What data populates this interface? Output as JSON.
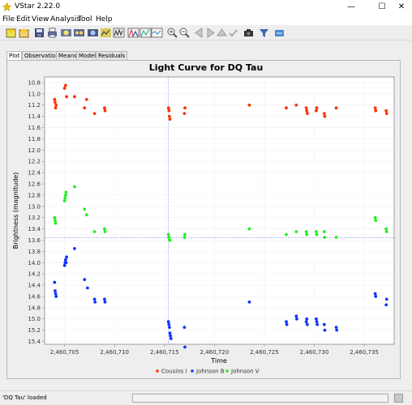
{
  "window": {
    "title": "VStar 2.22.0",
    "minimize": "—",
    "maximize": "☐",
    "close": "✕"
  },
  "menu": [
    "File",
    "Edit",
    "View",
    "Analysis",
    "Tool",
    "Help"
  ],
  "toolbar_icons": [
    "new-star-icon",
    "open-file-icon",
    "save-icon",
    "print-icon",
    "info-icon",
    "plot-settings-icon",
    "zoom-icon",
    "filter-icon",
    "phase-plot-icon",
    "period-search-icon",
    "model-icon",
    "zoom-in-icon",
    "zoom-out-icon",
    "pan-left-icon",
    "pan-right-icon",
    "pan-up-icon",
    "pan-down-icon",
    "check-icon",
    "camera-icon",
    "filter-funnel-icon",
    "plugin-icon"
  ],
  "tabs": [
    "Plot",
    "Observations",
    "Means",
    "Model",
    "Residuals"
  ],
  "active_tab": "Plot",
  "status": {
    "message": "'DQ Tau' loaded"
  },
  "chart_data": {
    "type": "scatter",
    "title": "Light Curve for DQ Tau",
    "xlabel": "Time",
    "ylabel": "Brightness (magnitude)",
    "xlim": [
      2460703,
      2460738
    ],
    "ylim": [
      10.7,
      15.45
    ],
    "y_inverted": true,
    "xticks": [
      2460705,
      2460710,
      2460715,
      2460720,
      2460725,
      2460730,
      2460735
    ],
    "xtick_labels": [
      "2,460,705",
      "2,460,710",
      "2,460,715",
      "2,460,720",
      "2,460,725",
      "2,460,730",
      "2,460,735"
    ],
    "yticks": [
      10.8,
      11.0,
      11.2,
      11.4,
      11.6,
      11.8,
      12.0,
      12.2,
      12.4,
      12.6,
      12.8,
      13.0,
      13.2,
      13.4,
      13.6,
      13.8,
      14.0,
      14.2,
      14.4,
      14.6,
      14.8,
      15.0,
      15.2,
      15.4
    ],
    "ytick_labels": [
      "10.8",
      "11.0",
      "11.2",
      "11.4",
      "11.6",
      "11.8",
      "12.0",
      "12.2",
      "12.4",
      "12.6",
      "12.8",
      "13.0",
      "13.2",
      "13.4",
      "13.6",
      "13.8",
      "14.0",
      "14.2",
      "14.4",
      "14.6",
      "14.8",
      "15.0",
      "15.2",
      "15.4"
    ],
    "crosshair": {
      "x": 2460715.4,
      "y": 13.56
    },
    "grid": true,
    "legend_position": "bottom",
    "series": [
      {
        "name": "Cousins I",
        "color": "#ff3300",
        "x": [
          2460704.0,
          2460704.05,
          2460704.1,
          2460704.15,
          2460705.0,
          2460705.1,
          2460705.2,
          2460706.0,
          2460707.0,
          2460707.2,
          2460708.0,
          2460709.0,
          2460709.05,
          2460715.4,
          2460715.45,
          2460715.5,
          2460715.55,
          2460717.0,
          2460717.05,
          2460723.5,
          2460727.2,
          2460728.2,
          2460729.2,
          2460729.25,
          2460729.3,
          2460730.2,
          2460730.25,
          2460731.0,
          2460731.05,
          2460732.2,
          2460736.1,
          2460736.15,
          2460737.2,
          2460737.25
        ],
        "y": [
          11.1,
          11.15,
          11.25,
          11.2,
          10.9,
          10.85,
          11.05,
          11.05,
          11.25,
          11.1,
          11.35,
          11.25,
          11.3,
          11.25,
          11.3,
          11.4,
          11.45,
          11.35,
          11.25,
          11.2,
          11.25,
          11.2,
          11.25,
          11.3,
          11.35,
          11.3,
          11.25,
          11.35,
          11.4,
          11.25,
          11.25,
          11.3,
          11.3,
          11.35
        ]
      },
      {
        "name": "Johnson B",
        "color": "#1133ff",
        "x": [
          2460704.0,
          2460704.05,
          2460704.1,
          2460704.15,
          2460705.0,
          2460705.05,
          2460705.1,
          2460705.15,
          2460705.2,
          2460706.0,
          2460707.0,
          2460707.3,
          2460708.0,
          2460708.05,
          2460709.0,
          2460709.05,
          2460715.4,
          2460715.45,
          2460715.5,
          2460715.55,
          2460715.6,
          2460715.65,
          2460717.0,
          2460717.05,
          2460723.5,
          2460727.2,
          2460727.25,
          2460728.2,
          2460728.25,
          2460729.2,
          2460729.25,
          2460729.3,
          2460730.2,
          2460730.25,
          2460730.3,
          2460731.0,
          2460731.05,
          2460732.2,
          2460732.25,
          2460736.1,
          2460736.15,
          2460737.2,
          2460737.25
        ],
        "y": [
          14.35,
          14.5,
          14.55,
          14.6,
          14.05,
          14.0,
          13.95,
          14.0,
          13.9,
          13.75,
          14.3,
          14.45,
          14.65,
          14.7,
          14.65,
          14.7,
          15.05,
          15.1,
          15.15,
          15.25,
          15.3,
          15.35,
          15.15,
          15.5,
          14.7,
          15.05,
          15.1,
          14.95,
          15.0,
          15.05,
          15.0,
          15.1,
          15.0,
          15.05,
          15.1,
          15.1,
          15.2,
          15.15,
          15.2,
          14.55,
          14.6,
          14.75,
          14.65
        ]
      },
      {
        "name": "Johnson V",
        "color": "#22ee22",
        "x": [
          2460704.0,
          2460704.05,
          2460704.1,
          2460705.0,
          2460705.05,
          2460705.1,
          2460705.15,
          2460706.0,
          2460707.0,
          2460707.2,
          2460708.0,
          2460709.0,
          2460709.05,
          2460715.4,
          2460715.45,
          2460715.5,
          2460715.55,
          2460717.0,
          2460717.05,
          2460723.5,
          2460727.2,
          2460728.2,
          2460729.2,
          2460729.25,
          2460730.2,
          2460730.25,
          2460731.0,
          2460731.05,
          2460732.2,
          2460736.1,
          2460736.15,
          2460737.2,
          2460737.25
        ],
        "y": [
          13.2,
          13.25,
          13.3,
          12.9,
          12.85,
          12.8,
          12.75,
          12.65,
          13.05,
          13.15,
          13.45,
          13.4,
          13.45,
          13.5,
          13.55,
          13.6,
          13.6,
          13.55,
          13.5,
          13.4,
          13.5,
          13.45,
          13.45,
          13.5,
          13.45,
          13.5,
          13.45,
          13.55,
          13.55,
          13.2,
          13.25,
          13.4,
          13.45
        ]
      }
    ]
  }
}
